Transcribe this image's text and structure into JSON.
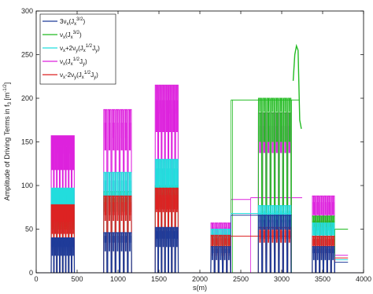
{
  "chart_data": {
    "type": "line",
    "xlabel": "s(m)",
    "ylabel": "Amplitude of Driving Terms in f",
    "ylabel_sub": "3",
    "ylabel_unit": "[m",
    "ylabel_unit_sup": "-1/2",
    "ylabel_end": "]",
    "xlim": [
      0,
      4000
    ],
    "ylim": [
      0,
      300
    ],
    "xticks": [
      "0",
      "500",
      "1000",
      "1500",
      "2000",
      "2500",
      "3000",
      "3500",
      "4000"
    ],
    "yticks": [
      "0",
      "50",
      "100",
      "150",
      "200",
      "250",
      "300"
    ],
    "legend_position": "top-left",
    "colors": {
      "s1": "#1f3b99",
      "s2": "#22bb22",
      "s3": "#22dddd",
      "s4": "#dd22dd",
      "s5": "#dd2222"
    },
    "legend": [
      {
        "pre": "3ν",
        "sub1": "x",
        "mid": "(J",
        "sub2": "x",
        "sup": "3/2",
        "post": ")"
      },
      {
        "pre": "ν",
        "sub1": "x",
        "mid": "(J",
        "sub2": "x",
        "sup": "3/2",
        "post": ")"
      },
      {
        "pre": "ν",
        "sub1": "x",
        "mid": "+2ν",
        "sub2": "y",
        "sup": "",
        "post": "(J",
        "sub3": "x",
        "sup3": "1/2",
        "tail": "J",
        "sub4": "y",
        "end": ")"
      },
      {
        "pre": "ν",
        "sub1": "x",
        "mid": "(J",
        "sub2": "x",
        "sup": "1/2",
        "post": "J",
        "sub3": "y",
        "end": ")"
      },
      {
        "pre": "ν",
        "sub1": "x",
        "mid": "-2ν",
        "sub2": "y",
        "sup": "",
        "post": "(J",
        "sub3": "x",
        "sup3": "1/2",
        "tail": "J",
        "sub4": "y",
        "end": ")"
      }
    ],
    "series": [
      {
        "key": "s4",
        "blocks": [
          [
            180,
            470,
            8,
            157,
            137
          ],
          [
            820,
            1170,
            7,
            187,
            155
          ],
          [
            1450,
            1740,
            7,
            215,
            183
          ],
          [
            2130,
            2380,
            5,
            57,
            37
          ],
          [
            2710,
            3120,
            8,
            183,
            140
          ],
          [
            3370,
            3650,
            6,
            88,
            68
          ]
        ],
        "baseline": [
          [
            2380,
            2620,
            84
          ],
          [
            2620,
            3120,
            86
          ],
          [
            3120,
            3250,
            86
          ],
          [
            3650,
            3810,
            20
          ]
        ]
      },
      {
        "key": "s2",
        "blocks": [
          [
            180,
            470,
            8,
            70,
            50
          ],
          [
            820,
            1170,
            7,
            93,
            72
          ],
          [
            1450,
            1740,
            7,
            100,
            80
          ],
          [
            2130,
            2380,
            5,
            42,
            30
          ],
          [
            2710,
            3120,
            8,
            200,
            185
          ],
          [
            3370,
            3650,
            6,
            65,
            48
          ]
        ],
        "baseline": [
          [
            2380,
            2400,
            198
          ],
          [
            2400,
            3120,
            198
          ],
          [
            3120,
            3210,
            198
          ],
          [
            3650,
            3810,
            50
          ]
        ],
        "spike": [
          [
            3140,
            220
          ],
          [
            3160,
            250
          ],
          [
            3180,
            260
          ],
          [
            3200,
            255
          ],
          [
            3220,
            175
          ],
          [
            3240,
            165
          ]
        ]
      },
      {
        "key": "s3",
        "blocks": [
          [
            180,
            470,
            8,
            97,
            80
          ],
          [
            820,
            1170,
            7,
            115,
            95
          ],
          [
            1450,
            1740,
            7,
            130,
            105
          ],
          [
            2130,
            2380,
            5,
            50,
            33
          ],
          [
            2710,
            3120,
            8,
            77,
            55
          ],
          [
            3370,
            3650,
            6,
            57,
            45
          ]
        ],
        "baseline": [
          [
            2380,
            3120,
            68
          ],
          [
            3650,
            3810,
            15
          ]
        ]
      },
      {
        "key": "s5",
        "blocks": [
          [
            180,
            470,
            8,
            78,
            45
          ],
          [
            820,
            1170,
            7,
            88,
            60
          ],
          [
            1450,
            1740,
            7,
            97,
            70
          ],
          [
            2130,
            2380,
            5,
            43,
            20
          ],
          [
            2710,
            3120,
            8,
            52,
            35
          ],
          [
            3370,
            3650,
            6,
            42,
            28
          ]
        ],
        "baseline": [
          [
            2380,
            3120,
            42
          ],
          [
            3650,
            3810,
            17
          ]
        ]
      },
      {
        "key": "s1",
        "blocks": [
          [
            180,
            470,
            8,
            40,
            20
          ],
          [
            820,
            1170,
            7,
            46,
            25
          ],
          [
            1450,
            1740,
            7,
            52,
            30
          ],
          [
            2130,
            2380,
            5,
            30,
            15
          ],
          [
            2710,
            3120,
            8,
            66,
            50
          ],
          [
            3370,
            3650,
            6,
            30,
            15
          ]
        ],
        "baseline": [
          [
            2380,
            3120,
            66
          ],
          [
            3650,
            3810,
            12
          ]
        ]
      }
    ]
  }
}
